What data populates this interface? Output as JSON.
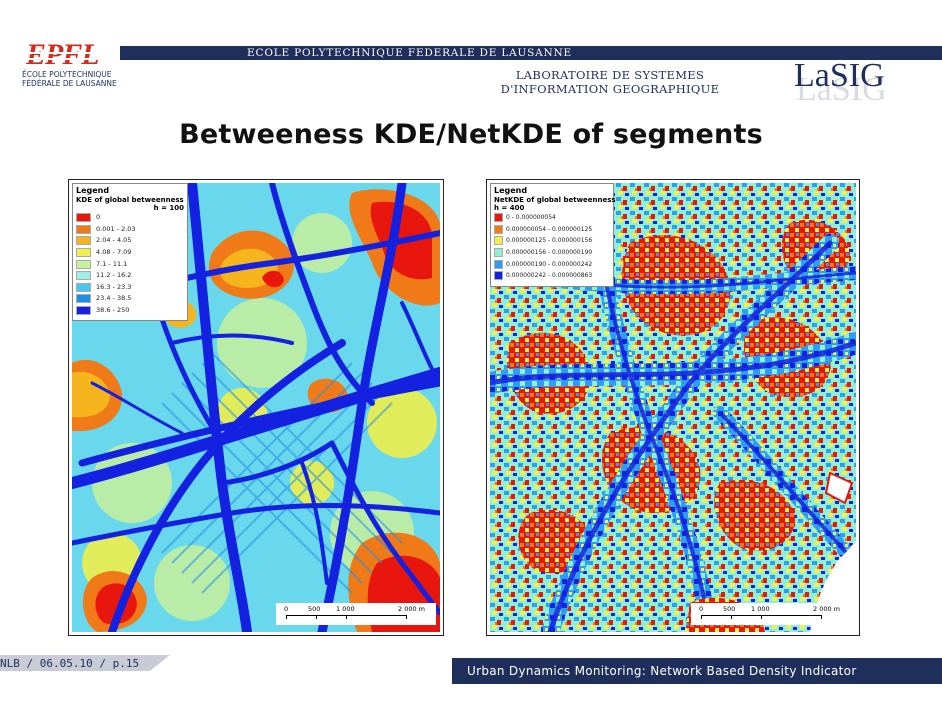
{
  "header": {
    "school_banner": "ECOLE POLYTECHNIQUE FEDERALE DE LAUSANNE",
    "epfl_logo_text": "EPFL",
    "epfl_subtitle_line1": "ÉCOLE POLYTECHNIQUE",
    "epfl_subtitle_line2": "FÉDÉRALE DE LAUSANNE",
    "lab_line1": "LABORATOIRE DE SYSTEMES",
    "lab_line2": "D'INFORMATION GEOGRAPHIQUE",
    "lasig_logo_text": "LaSIG",
    "colors": {
      "navy": "#1f2f5c",
      "epfl_red": "#d52b1e"
    }
  },
  "slide": {
    "title": "Betweeness KDE/NetKDE of segments"
  },
  "map_left": {
    "legend_title": "Legend",
    "legend_subtitle": "KDE of global betweenness",
    "legend_param": "h = 100",
    "classes": [
      {
        "label": "0",
        "color": "#e8160c"
      },
      {
        "label": "0.001 - 2.03",
        "color": "#f07a18"
      },
      {
        "label": "2.04 - 4.05",
        "color": "#f6b51c"
      },
      {
        "label": "4.08 - 7.09",
        "color": "#f2f04a"
      },
      {
        "label": "7.1 - 11.1",
        "color": "#c6f2a0"
      },
      {
        "label": "11.2 - 16.2",
        "color": "#9ef0e6"
      },
      {
        "label": "16.3 - 23.3",
        "color": "#46c8f0"
      },
      {
        "label": "23.4 - 38.5",
        "color": "#1f8ee8"
      },
      {
        "label": "38.6 - 250",
        "color": "#1421e0"
      }
    ],
    "scale_ticks": [
      "0",
      "500",
      "1 000",
      "2 000 m"
    ]
  },
  "map_right": {
    "legend_title": "Legend",
    "legend_subtitle": "NetKDE of global betweenness",
    "legend_param": "h = 400",
    "classes": [
      {
        "label": "0 - 0.000000054",
        "color": "#e8160c"
      },
      {
        "label": "0.000000054 - 0.000000125",
        "color": "#f07a18"
      },
      {
        "label": "0.000000125 - 0.000000156",
        "color": "#f2f04a"
      },
      {
        "label": "0.000000156 - 0.000000190",
        "color": "#8ff0d6"
      },
      {
        "label": "0.000000190 - 0.000000242",
        "color": "#2f9ef0"
      },
      {
        "label": "0.000000242 - 0.000000863",
        "color": "#1421e0"
      }
    ],
    "scale_ticks": [
      "0",
      "500",
      "1 000",
      "2 000 m"
    ]
  },
  "footer": {
    "page_ref": "NLB / 06.05.10 / p.15",
    "talk_title": "Urban Dynamics Monitoring: Network Based Density Indicator"
  }
}
